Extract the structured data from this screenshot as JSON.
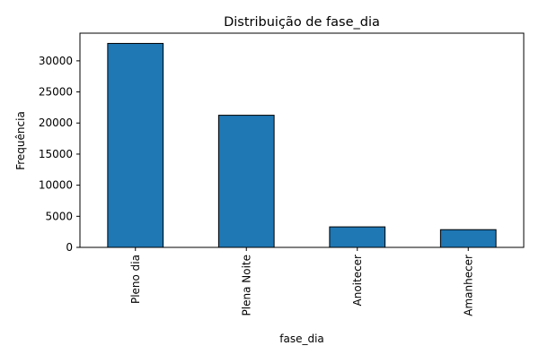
{
  "chart_data": {
    "type": "bar",
    "title": "Distribuição de fase_dia",
    "xlabel": "fase_dia",
    "ylabel": "Frequência",
    "categories": [
      "Pleno dia",
      "Plena Noite",
      "Anoitecer",
      "Amanhecer"
    ],
    "values": [
      32800,
      21250,
      3300,
      2850
    ],
    "ylim": [
      0,
      34450
    ],
    "yticks": [
      0,
      5000,
      10000,
      15000,
      20000,
      25000,
      30000
    ],
    "ytick_labels": [
      "0",
      "5000",
      "10000",
      "15000",
      "20000",
      "25000",
      "30000"
    ],
    "grid": false,
    "legend": "none",
    "colors": {
      "bar": "#1f77b4",
      "edge": "#000000",
      "axes": "#000000"
    }
  }
}
